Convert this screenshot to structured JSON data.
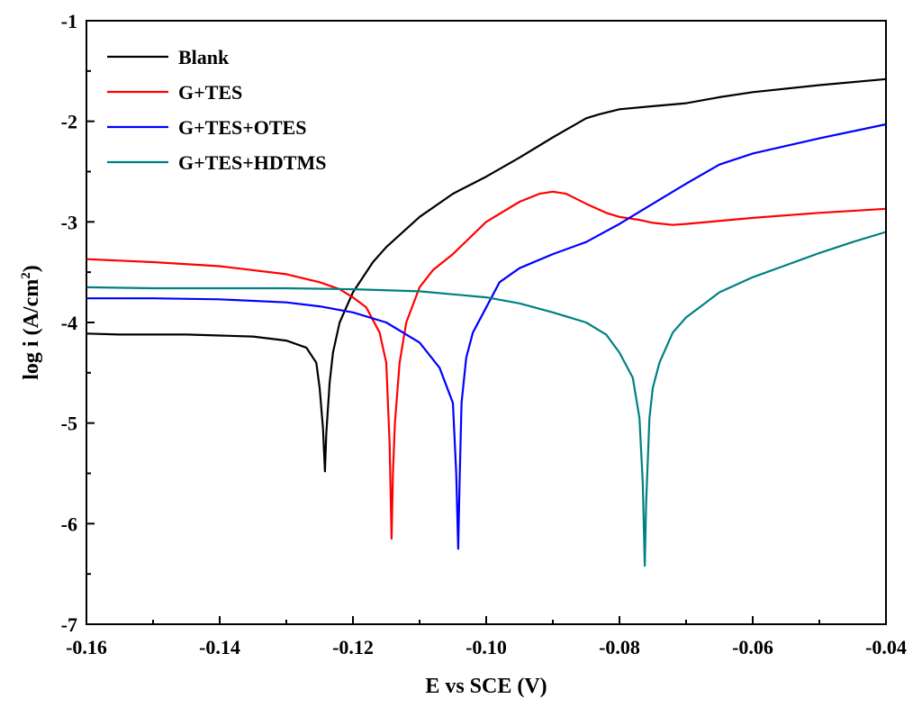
{
  "chart_data": {
    "type": "line",
    "title": "",
    "xlabel": "E vs SCE (V)",
    "ylabel_main": "log i (A/cm",
    "ylabel_sup": "2",
    "ylabel_close": ")",
    "xlim": [
      -0.16,
      -0.04
    ],
    "ylim": [
      -7,
      -1
    ],
    "grid": false,
    "legend_position": "top-left",
    "x_ticks": [
      -0.16,
      -0.14,
      -0.12,
      -0.1,
      -0.08,
      -0.06,
      -0.04
    ],
    "x_tick_labels": [
      "-0.16",
      "-0.14",
      "-0.12",
      "-0.10",
      "-0.08",
      "-0.06",
      "-0.04"
    ],
    "y_ticks": [
      -1,
      -2,
      -3,
      -4,
      -5,
      -6,
      -7
    ],
    "y_tick_labels": [
      "-1",
      "-2",
      "-3",
      "-4",
      "-5",
      "-6",
      "-7"
    ],
    "series": [
      {
        "name": "Blank",
        "color": "#000000",
        "x": [
          -0.16,
          -0.155,
          -0.15,
          -0.145,
          -0.14,
          -0.135,
          -0.13,
          -0.127,
          -0.1255,
          -0.125,
          -0.1245,
          -0.1242,
          -0.124,
          -0.1235,
          -0.123,
          -0.122,
          -0.12,
          -0.117,
          -0.115,
          -0.11,
          -0.105,
          -0.1,
          -0.095,
          -0.09,
          -0.085,
          -0.083,
          -0.08,
          -0.075,
          -0.07,
          -0.065,
          -0.06,
          -0.05,
          -0.04
        ],
        "y": [
          -4.11,
          -4.12,
          -4.12,
          -4.12,
          -4.13,
          -4.14,
          -4.18,
          -4.25,
          -4.4,
          -4.65,
          -5.05,
          -5.48,
          -5.1,
          -4.6,
          -4.3,
          -4.0,
          -3.7,
          -3.4,
          -3.25,
          -2.95,
          -2.72,
          -2.55,
          -2.36,
          -2.16,
          -1.97,
          -1.93,
          -1.88,
          -1.85,
          -1.82,
          -1.76,
          -1.71,
          -1.64,
          -1.58
        ]
      },
      {
        "name": "G+TES",
        "color": "#ff0000",
        "x": [
          -0.16,
          -0.15,
          -0.14,
          -0.13,
          -0.125,
          -0.122,
          -0.12,
          -0.118,
          -0.116,
          -0.115,
          -0.1145,
          -0.1142,
          -0.114,
          -0.1137,
          -0.113,
          -0.112,
          -0.11,
          -0.108,
          -0.105,
          -0.1,
          -0.095,
          -0.092,
          -0.09,
          -0.088,
          -0.085,
          -0.082,
          -0.08,
          -0.077,
          -0.075,
          -0.072,
          -0.07,
          -0.06,
          -0.05,
          -0.04
        ],
        "y": [
          -3.37,
          -3.4,
          -3.44,
          -3.52,
          -3.6,
          -3.67,
          -3.75,
          -3.85,
          -4.1,
          -4.4,
          -5.2,
          -6.15,
          -5.5,
          -5.0,
          -4.4,
          -4.0,
          -3.65,
          -3.48,
          -3.32,
          -3.0,
          -2.8,
          -2.72,
          -2.7,
          -2.72,
          -2.82,
          -2.91,
          -2.95,
          -2.98,
          -3.01,
          -3.03,
          -3.02,
          -2.96,
          -2.91,
          -2.87
        ]
      },
      {
        "name": "G+TES+OTES",
        "color": "#0000ff",
        "x": [
          -0.16,
          -0.15,
          -0.14,
          -0.13,
          -0.125,
          -0.12,
          -0.115,
          -0.11,
          -0.107,
          -0.105,
          -0.1045,
          -0.1042,
          -0.104,
          -0.1037,
          -0.103,
          -0.102,
          -0.1,
          -0.098,
          -0.095,
          -0.09,
          -0.085,
          -0.08,
          -0.075,
          -0.07,
          -0.065,
          -0.06,
          -0.05,
          -0.04
        ],
        "y": [
          -3.76,
          -3.76,
          -3.77,
          -3.8,
          -3.84,
          -3.9,
          -4.0,
          -4.2,
          -4.45,
          -4.8,
          -5.5,
          -6.25,
          -5.6,
          -4.8,
          -4.35,
          -4.1,
          -3.85,
          -3.6,
          -3.46,
          -3.32,
          -3.2,
          -3.02,
          -2.82,
          -2.62,
          -2.43,
          -2.32,
          -2.17,
          -2.03
        ]
      },
      {
        "name": "G+TES+HDTMS",
        "color": "#008080",
        "x": [
          -0.16,
          -0.15,
          -0.14,
          -0.13,
          -0.12,
          -0.11,
          -0.1,
          -0.095,
          -0.09,
          -0.085,
          -0.082,
          -0.08,
          -0.078,
          -0.077,
          -0.0765,
          -0.0762,
          -0.076,
          -0.0755,
          -0.075,
          -0.074,
          -0.072,
          -0.07,
          -0.067,
          -0.065,
          -0.06,
          -0.055,
          -0.05,
          -0.045,
          -0.04
        ],
        "y": [
          -3.65,
          -3.66,
          -3.66,
          -3.66,
          -3.67,
          -3.69,
          -3.75,
          -3.81,
          -3.9,
          -4.0,
          -4.12,
          -4.3,
          -4.55,
          -4.95,
          -5.6,
          -6.42,
          -5.8,
          -4.95,
          -4.65,
          -4.4,
          -4.1,
          -3.95,
          -3.8,
          -3.7,
          -3.55,
          -3.43,
          -3.31,
          -3.2,
          -3.1
        ]
      }
    ]
  }
}
